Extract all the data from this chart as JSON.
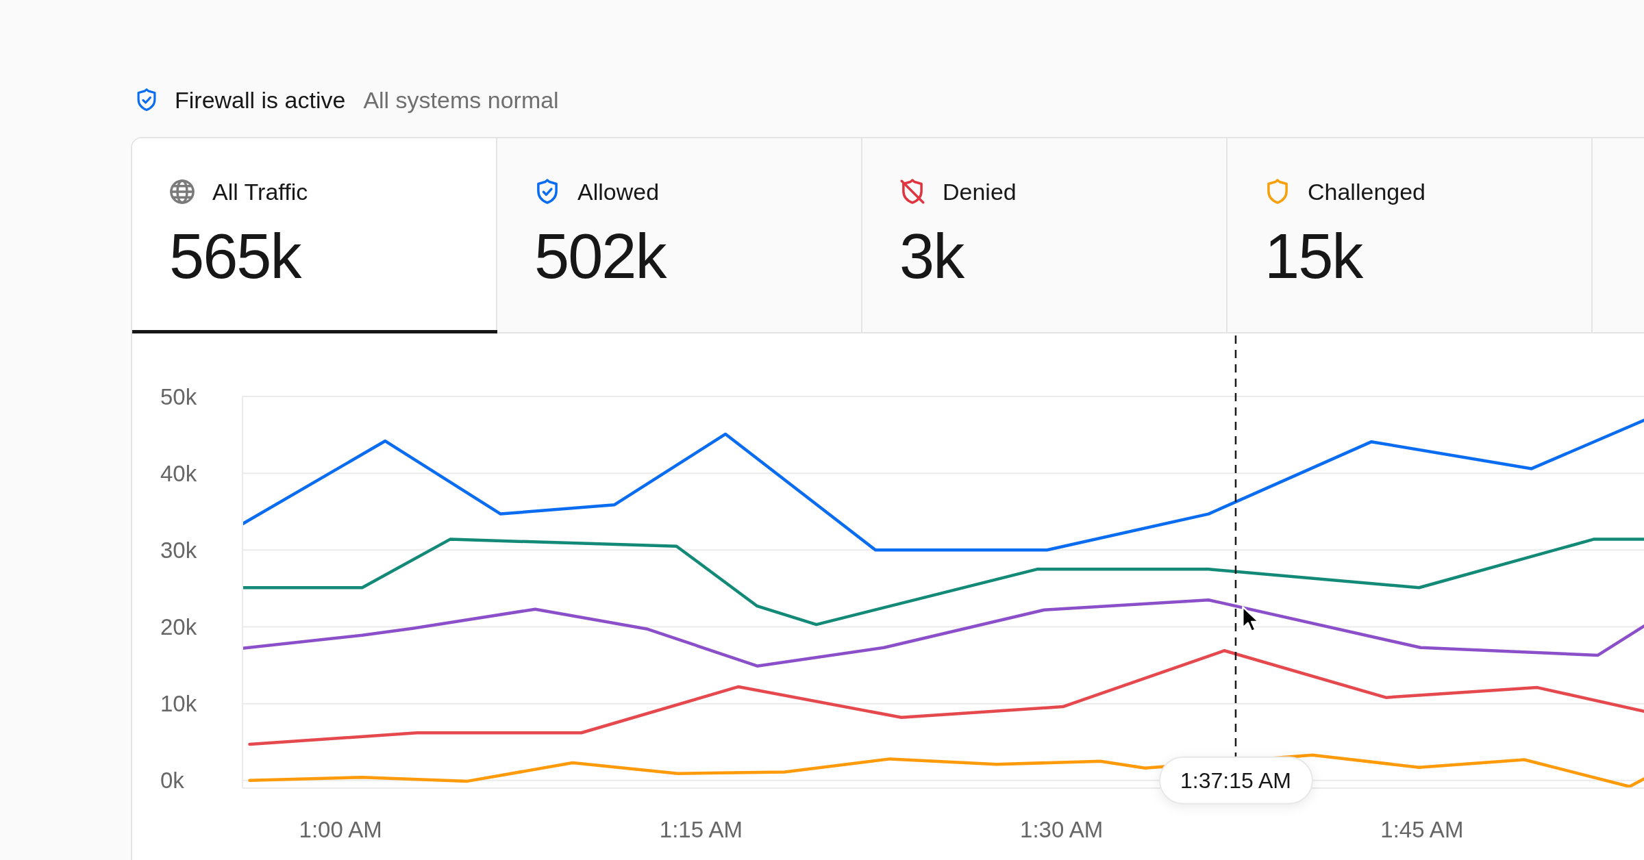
{
  "chart_data": [
    {
      "type": "other",
      "title": "Firewall is active",
      "subtitle": "All systems normal",
      "categories": [
        "All Traffic",
        "Allowed",
        "Denied",
        "Challenged"
      ],
      "value_labels": [
        "565k",
        "502k",
        "3k",
        "15k"
      ]
    },
    {
      "type": "line",
      "xlim": [
        0.932,
        1.904
      ],
      "xticks": [
        {
          "value": 1,
          "label": "1:00 AM"
        },
        {
          "value": 1.25,
          "label": "1:15 AM"
        },
        {
          "value": 1.5,
          "label": "1:30 AM"
        },
        {
          "value": 1.75,
          "label": "1:45 AM"
        }
      ],
      "ylim": [
        -1000,
        50000
      ],
      "yticks": [
        {
          "value": 0,
          "label": "0k"
        },
        {
          "value": 10000,
          "label": "10k"
        },
        {
          "value": 20000,
          "label": "20k"
        },
        {
          "value": 30000,
          "label": "30k"
        },
        {
          "value": 40000,
          "label": "40k"
        },
        {
          "value": 50000,
          "label": "50k"
        }
      ],
      "grid": "y",
      "series": [
        {
          "color": "#0a6cf0",
          "x": [
            0.932,
            1.031,
            1.111,
            1.19,
            1.267,
            1.371,
            1.49,
            1.602,
            1.715,
            1.826,
            1.904
          ],
          "values": [
            33400,
            44200,
            34700,
            35900,
            45100,
            30000,
            30000,
            34700,
            44100,
            40600,
            46900
          ]
        },
        {
          "color": "#138a78",
          "x": [
            0.932,
            1.015,
            1.076,
            1.233,
            1.289,
            1.33,
            1.483,
            1.602,
            1.748,
            1.869,
            1.904
          ],
          "values": [
            25100,
            25100,
            31400,
            30500,
            22700,
            20300,
            27500,
            27500,
            25100,
            31400,
            31400
          ]
        },
        {
          "color": "#8b4fc9",
          "x": [
            0.932,
            1.015,
            1.05,
            1.135,
            1.213,
            1.289,
            1.377,
            1.488,
            1.602,
            1.749,
            1.872,
            1.904
          ],
          "values": [
            17200,
            18900,
            19800,
            22300,
            19700,
            14900,
            17300,
            22200,
            23500,
            17300,
            16300,
            20100
          ]
        },
        {
          "color": "#e5484d",
          "x": [
            0.937,
            1.053,
            1.167,
            1.276,
            1.389,
            1.501,
            1.613,
            1.725,
            1.83,
            1.904
          ],
          "values": [
            4700,
            6200,
            6200,
            12200,
            8200,
            9600,
            16900,
            10800,
            12100,
            9000
          ]
        },
        {
          "color": "#ff9a0a",
          "x": [
            0.937,
            1.015,
            1.088,
            1.161,
            1.234,
            1.308,
            1.381,
            1.455,
            1.527,
            1.558,
            1.674,
            1.748,
            1.821,
            1.894,
            1.904
          ],
          "values": [
            0,
            400,
            -100,
            2300,
            900,
            1100,
            2800,
            2100,
            2500,
            1600,
            3300,
            1700,
            2700,
            -800,
            200
          ]
        }
      ],
      "ref_lines": [
        {
          "axis": "x",
          "value": 1.620833,
          "line_style": "dashed",
          "color": "#1a1a1a"
        }
      ],
      "annotations": [
        {
          "text": "1:37:15 AM",
          "x": 1.620833,
          "y": 0
        }
      ]
    }
  ]
}
